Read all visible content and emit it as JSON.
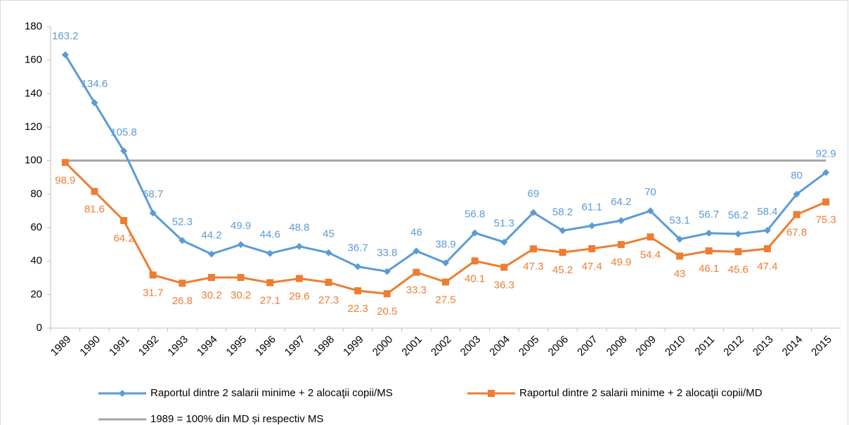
{
  "chart_data": {
    "type": "line",
    "categories": [
      "1989",
      "1990",
      "1991",
      "1992",
      "1993",
      "1994",
      "1995",
      "1996",
      "1997",
      "1998",
      "1999",
      "2000",
      "2001",
      "2002",
      "2003",
      "2004",
      "2005",
      "2006",
      "2007",
      "2008",
      "2009",
      "2010",
      "2011",
      "2012",
      "2013",
      "2014",
      "2015"
    ],
    "series": [
      {
        "name": "Raportul dintre 2 salarii minime + 2 alocaţii copii/MS",
        "color": "#5b9bd5",
        "marker": "diamond",
        "label_position": "above",
        "values": [
          163.2,
          134.6,
          105.8,
          68.7,
          52.3,
          44.2,
          49.9,
          44.6,
          48.8,
          45,
          36.7,
          33.8,
          46,
          38.9,
          56.8,
          51.3,
          69,
          58.2,
          61.1,
          64.2,
          70,
          53.1,
          56.7,
          56.2,
          58.4,
          80,
          92.9
        ]
      },
      {
        "name": "Raportul dintre 2 salarii minime + 2 alocaţii copii/MD",
        "color": "#ed7d31",
        "marker": "square",
        "label_position": "below",
        "values": [
          98.9,
          81.6,
          64.2,
          31.7,
          26.8,
          30.2,
          30.2,
          27.1,
          29.6,
          27.3,
          22.3,
          20.5,
          33.3,
          27.5,
          40.1,
          36.3,
          47.3,
          45.2,
          47.4,
          49.9,
          54.4,
          43,
          46.1,
          45.6,
          47.4,
          67.8,
          75.3
        ]
      },
      {
        "name": "1989 = 100% din MD și respectiv MS",
        "color": "#a5a5a5",
        "marker": "none",
        "values": [
          100,
          100,
          100,
          100,
          100,
          100,
          100,
          100,
          100,
          100,
          100,
          100,
          100,
          100,
          100,
          100,
          100,
          100,
          100,
          100,
          100,
          100,
          100,
          100,
          100,
          100,
          100
        ]
      }
    ],
    "ylim": [
      0,
      180
    ],
    "yticks": [
      0,
      20,
      40,
      60,
      80,
      100,
      120,
      140,
      160,
      180
    ],
    "grid": false,
    "legend": "bottom"
  }
}
